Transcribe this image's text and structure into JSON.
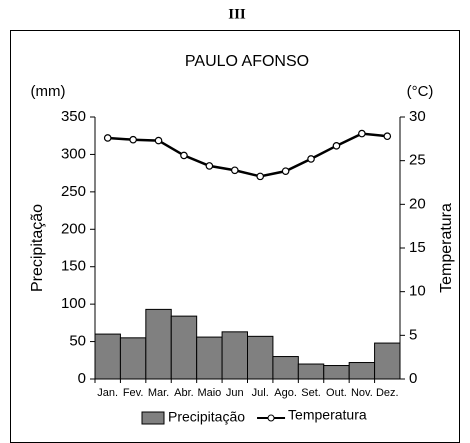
{
  "chart_data": {
    "type": "bar",
    "label": "III",
    "title": "PAULO AFONSO",
    "ylabel": "Precipitação",
    "y2label": "Temperatura",
    "yunit": "(mm)",
    "y2unit": "(°C)",
    "categories": [
      "Jan.",
      "Fev.",
      "Mar.",
      "Abr.",
      "Maio",
      "Jun",
      "Jul.",
      "Ago.",
      "Set.",
      "Out.",
      "Nov.",
      "Dez."
    ],
    "series": [
      {
        "name": "Precipitação",
        "type": "bar",
        "color": "#808080",
        "values": [
          60,
          55,
          93,
          84,
          56,
          63,
          57,
          30,
          20,
          18,
          22,
          48
        ]
      },
      {
        "name": "Temperatura",
        "type": "line",
        "axis": "y2",
        "color": "#000000",
        "values": [
          27.6,
          27.4,
          27.3,
          25.6,
          24.4,
          23.9,
          23.2,
          23.8,
          25.2,
          26.7,
          28.1,
          27.8
        ]
      }
    ],
    "ylim": [
      0,
      350
    ],
    "yticks": [
      0,
      50,
      100,
      150,
      200,
      250,
      300,
      350
    ],
    "y2lim": [
      0,
      30
    ],
    "y2ticks": [
      0,
      5,
      10,
      15,
      20,
      25,
      30
    ],
    "grid": false,
    "legend": "bottom"
  }
}
